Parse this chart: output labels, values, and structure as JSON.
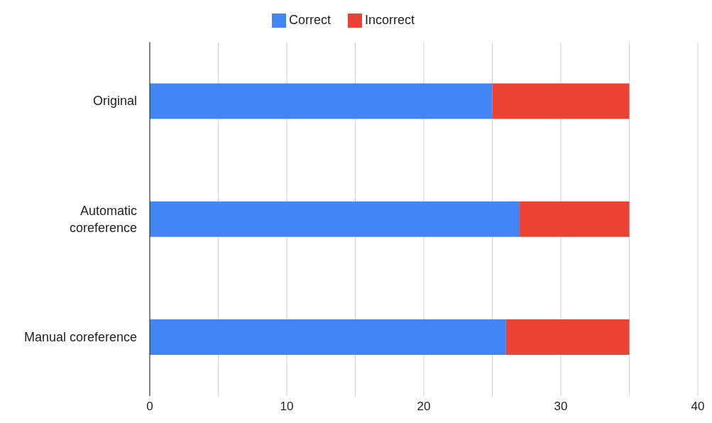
{
  "chart_data": {
    "type": "bar",
    "orientation": "horizontal",
    "stacked": true,
    "categories": [
      "Original",
      "Automatic coreference",
      "Manual coreference"
    ],
    "series": [
      {
        "name": "Correct",
        "color": "#4285f4",
        "values": [
          25,
          27,
          26
        ]
      },
      {
        "name": "Incorrect",
        "color": "#ea4335",
        "values": [
          10,
          8,
          9
        ]
      }
    ],
    "xlim": [
      0,
      40
    ],
    "xticks": [
      0,
      {
        "value": 5,
        "label": null
      },
      10,
      {
        "value": 15,
        "label": null
      },
      20,
      {
        "value": 25,
        "label": null
      },
      30,
      {
        "value": 35,
        "label": null
      },
      40
    ],
    "grid": "x",
    "legend": "top"
  }
}
